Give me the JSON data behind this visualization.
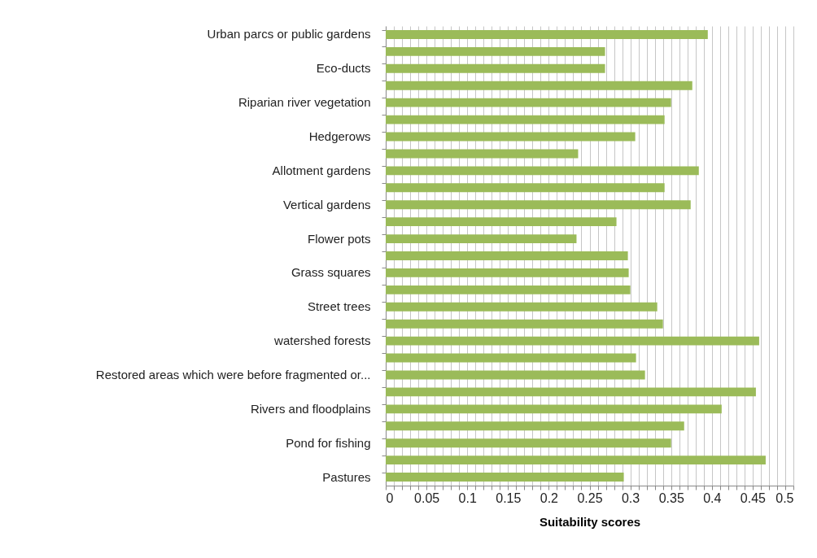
{
  "chart_data": {
    "type": "bar",
    "orientation": "horizontal",
    "xlabel": "Suitability scores",
    "categories": [
      "Urban parcs or public gardens",
      null,
      "Eco-ducts",
      null,
      "Riparian river vegetation",
      null,
      "Hedgerows",
      null,
      "Allotment gardens",
      null,
      "Vertical gardens",
      null,
      "Flower pots",
      null,
      "Grass squares",
      null,
      "Street trees",
      null,
      "watershed forests",
      null,
      "Restored areas which were before fragmented or...",
      null,
      "Rivers and floodplains",
      null,
      "Pond for fishing",
      null,
      "Pastures"
    ],
    "values": [
      0.395,
      0.269,
      0.269,
      0.376,
      0.35,
      0.342,
      0.306,
      0.236,
      0.384,
      0.342,
      0.374,
      0.283,
      0.234,
      0.297,
      0.298,
      0.3,
      0.333,
      0.34,
      0.458,
      0.307,
      0.318,
      0.454,
      0.412,
      0.366,
      0.35,
      0.466,
      0.292
    ],
    "color": "#9bbb59",
    "xlim": [
      0,
      0.5
    ],
    "xticks": [
      0,
      {
        "value": 0.01,
        "label": null
      },
      {
        "value": 0.02,
        "label": null
      },
      {
        "value": 0.03,
        "label": null
      },
      {
        "value": 0.04,
        "label": null
      },
      0.05,
      {
        "value": 0.06,
        "label": null
      },
      {
        "value": 0.07,
        "label": null
      },
      {
        "value": 0.08,
        "label": null
      },
      {
        "value": 0.09,
        "label": null
      },
      0.1,
      {
        "value": 0.11,
        "label": null
      },
      {
        "value": 0.12,
        "label": null
      },
      {
        "value": 0.13,
        "label": null
      },
      {
        "value": 0.14,
        "label": null
      },
      0.15,
      {
        "value": 0.16,
        "label": null
      },
      {
        "value": 0.17,
        "label": null
      },
      {
        "value": 0.18,
        "label": null
      },
      {
        "value": 0.19,
        "label": null
      },
      0.2,
      {
        "value": 0.21,
        "label": null
      },
      {
        "value": 0.22,
        "label": null
      },
      {
        "value": 0.23,
        "label": null
      },
      {
        "value": 0.24,
        "label": null
      },
      0.25,
      {
        "value": 0.26,
        "label": null
      },
      {
        "value": 0.27,
        "label": null
      },
      {
        "value": 0.28,
        "label": null
      },
      {
        "value": 0.29,
        "label": null
      },
      0.3,
      {
        "value": 0.31,
        "label": null
      },
      {
        "value": 0.32,
        "label": null
      },
      {
        "value": 0.33,
        "label": null
      },
      {
        "value": 0.34,
        "label": null
      },
      0.35,
      {
        "value": 0.36,
        "label": null
      },
      {
        "value": 0.37,
        "label": null
      },
      {
        "value": 0.38,
        "label": null
      },
      {
        "value": 0.39,
        "label": null
      },
      0.4,
      {
        "value": 0.41,
        "label": null
      },
      {
        "value": 0.42,
        "label": null
      },
      {
        "value": 0.43,
        "label": null
      },
      {
        "value": 0.44,
        "label": null
      },
      0.45,
      {
        "value": 0.46,
        "label": null
      },
      {
        "value": 0.47,
        "label": null
      },
      {
        "value": 0.48,
        "label": null
      },
      {
        "value": 0.49,
        "label": null
      },
      0.5
    ],
    "grid": "x"
  }
}
